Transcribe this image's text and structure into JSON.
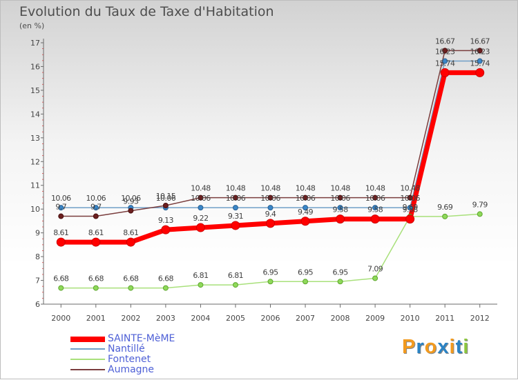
{
  "chart_data": {
    "type": "line",
    "title": "Evolution du Taux de Taxe d'Habitation",
    "subtitle": "(en %)",
    "x": [
      "2000",
      "2001",
      "2002",
      "2003",
      "2004",
      "2005",
      "2006",
      "2007",
      "2008",
      "2009",
      "2010",
      "2011",
      "2012"
    ],
    "ylim": [
      6,
      17
    ],
    "yticks": [
      6,
      7,
      8,
      9,
      10,
      11,
      12,
      13,
      14,
      15,
      16,
      17
    ],
    "series": [
      {
        "name": "SAINTE-MèME",
        "color": "#ff0000",
        "values": [
          8.61,
          8.61,
          8.61,
          9.13,
          9.22,
          9.31,
          9.4,
          9.49,
          9.58,
          9.58,
          9.58,
          15.74,
          15.74
        ],
        "labels": [
          "8.61",
          "8.61",
          "8.61",
          "9.13",
          "9.22",
          "9.31",
          "9.4",
          "9.49",
          "9.58",
          "9.58",
          "9.58",
          "",
          ""
        ]
      },
      {
        "name": "Nantillé",
        "color": "#6f9fc8",
        "values": [
          10.06,
          10.06,
          10.06,
          10.06,
          10.06,
          10.06,
          10.06,
          10.06,
          10.06,
          10.06,
          10.06,
          16.23,
          16.23
        ],
        "labels": [
          "10.06",
          "10.06",
          "10.06",
          "10.06",
          "10.06",
          "10.06",
          "10.06",
          "10.06",
          "10.06",
          "10.06",
          "10.06",
          "16.23",
          "16.23"
        ]
      },
      {
        "name": "Fontenet",
        "color": "#a8e07a",
        "values": [
          6.68,
          6.68,
          6.68,
          6.68,
          6.81,
          6.81,
          6.95,
          6.95,
          6.95,
          7.09,
          9.69,
          9.69,
          9.79
        ],
        "labels": [
          "6.68",
          "6.68",
          "6.68",
          "6.68",
          "6.81",
          "6.81",
          "6.95",
          "6.95",
          "6.95",
          "7.09",
          "9.69",
          "9.69",
          "9.79"
        ]
      },
      {
        "name": "Aumagne",
        "color": "#7a3d3d",
        "values": [
          9.7,
          9.7,
          9.93,
          10.15,
          10.48,
          10.48,
          10.48,
          10.48,
          10.48,
          10.48,
          10.48,
          16.67,
          16.67
        ],
        "labels": [
          "9.7",
          "9.7",
          "9.93",
          "10.15",
          "10.48",
          "10.48",
          "10.48",
          "10.48",
          "10.48",
          "10.48",
          "10.48",
          "16.67",
          "16.67"
        ]
      }
    ],
    "extra_labels": [
      {
        "series": "SAINTE-MèME",
        "index": 11,
        "text": "15.74"
      },
      {
        "series": "SAINTE-MèME",
        "index": 12,
        "text": "15.74"
      }
    ],
    "legend": "bottom-left",
    "grid": false
  },
  "brand": {
    "text": "Proxiti",
    "letters": [
      "P",
      "r",
      "o",
      "x",
      "i",
      "t",
      "i"
    ],
    "colors": [
      "#f29a1e",
      "#2b83c4",
      "#f29a1e",
      "#2b83c4",
      "#f29a1e",
      "#2b83c4",
      "#8cc63f"
    ]
  }
}
